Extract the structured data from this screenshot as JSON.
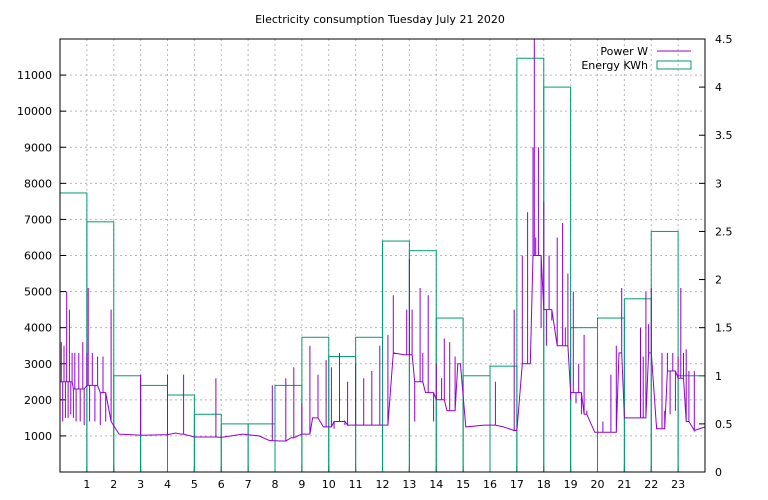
{
  "chart_data": {
    "type": "line",
    "title": "Electricity consumption Tuesday July 21 2020",
    "xlabel": "",
    "ylabel": "",
    "xlim": [
      0,
      24
    ],
    "ylim": [
      0,
      12000
    ],
    "y2lim": [
      0,
      4.5
    ],
    "grid": true,
    "legend_position": "top-right",
    "x_ticks": [
      "1",
      "2",
      "3",
      "4",
      "5",
      "6",
      "7",
      "8",
      "9",
      "10",
      "11",
      "12",
      "13",
      "14",
      "15",
      "16",
      "17",
      "18",
      "19",
      "20",
      "21",
      "22",
      "23"
    ],
    "y_ticks": [
      "1000",
      "2000",
      "3000",
      "4000",
      "5000",
      "6000",
      "7000",
      "8000",
      "9000",
      "10000",
      "11000"
    ],
    "y2_ticks": [
      "0",
      "0.5",
      "1",
      "1.5",
      "2",
      "2.5",
      "3",
      "3.5",
      "4",
      "4.5"
    ],
    "series": [
      {
        "name": "Power W",
        "kind": "line",
        "axis": "y",
        "color": "#9400d3",
        "base": [
          [
            0.0,
            2500
          ],
          [
            0.5,
            2300
          ],
          [
            1.0,
            2400
          ],
          [
            1.5,
            2200
          ],
          [
            1.9,
            1400
          ],
          [
            2.2,
            1050
          ],
          [
            3.0,
            1020
          ],
          [
            3.9,
            1030
          ],
          [
            4.3,
            1080
          ],
          [
            4.5,
            1050
          ],
          [
            5.0,
            970
          ],
          [
            6.0,
            960
          ],
          [
            6.8,
            1050
          ],
          [
            7.4,
            1000
          ],
          [
            7.8,
            870
          ],
          [
            8.2,
            860
          ],
          [
            8.6,
            950
          ],
          [
            9.0,
            1050
          ],
          [
            9.4,
            1500
          ],
          [
            9.8,
            1250
          ],
          [
            10.2,
            1400
          ],
          [
            10.7,
            1300
          ],
          [
            11.2,
            1300
          ],
          [
            12.0,
            1300
          ],
          [
            12.4,
            3300
          ],
          [
            12.8,
            3250
          ],
          [
            13.2,
            2500
          ],
          [
            13.6,
            2200
          ],
          [
            14.0,
            2000
          ],
          [
            14.4,
            1700
          ],
          [
            14.8,
            3000
          ],
          [
            15.1,
            1250
          ],
          [
            15.8,
            1300
          ],
          [
            16.5,
            1250
          ],
          [
            16.9,
            1150
          ],
          [
            17.2,
            3000
          ],
          [
            17.6,
            6000
          ],
          [
            18.0,
            4500
          ],
          [
            18.5,
            3500
          ],
          [
            19.0,
            2200
          ],
          [
            19.5,
            1600
          ],
          [
            19.9,
            1100
          ],
          [
            20.3,
            1100
          ],
          [
            20.8,
            3300
          ],
          [
            21.0,
            1500
          ],
          [
            21.6,
            1500
          ],
          [
            21.9,
            3300
          ],
          [
            22.2,
            1200
          ],
          [
            22.6,
            2800
          ],
          [
            23.0,
            2600
          ],
          [
            23.3,
            1400
          ],
          [
            23.6,
            1150
          ],
          [
            24.0,
            1250
          ]
        ],
        "spikes": [
          [
            0.05,
            3600
          ],
          [
            0.1,
            1400
          ],
          [
            0.15,
            3500
          ],
          [
            0.2,
            1500
          ],
          [
            0.25,
            5000
          ],
          [
            0.3,
            1500
          ],
          [
            0.35,
            4500
          ],
          [
            0.4,
            1600
          ],
          [
            0.45,
            3300
          ],
          [
            0.5,
            1500
          ],
          [
            0.55,
            3300
          ],
          [
            0.6,
            1400
          ],
          [
            0.7,
            3300
          ],
          [
            0.75,
            1400
          ],
          [
            0.85,
            3600
          ],
          [
            0.9,
            1300
          ],
          [
            1.0,
            3300
          ],
          [
            1.05,
            5100
          ],
          [
            1.1,
            1400
          ],
          [
            1.2,
            3300
          ],
          [
            1.3,
            1400
          ],
          [
            1.4,
            3200
          ],
          [
            1.5,
            1300
          ],
          [
            1.6,
            3200
          ],
          [
            1.7,
            1400
          ],
          [
            1.9,
            4500
          ],
          [
            3.0,
            2700
          ],
          [
            4.0,
            2700
          ],
          [
            4.6,
            2700
          ],
          [
            5.8,
            2600
          ],
          [
            7.9,
            2400
          ],
          [
            8.4,
            2600
          ],
          [
            8.7,
            2900
          ],
          [
            9.0,
            1900
          ],
          [
            9.3,
            3500
          ],
          [
            9.6,
            2700
          ],
          [
            9.9,
            3100
          ],
          [
            10.1,
            2900
          ],
          [
            10.2,
            1200
          ],
          [
            10.4,
            3300
          ],
          [
            10.6,
            1300
          ],
          [
            10.7,
            2500
          ],
          [
            10.8,
            1300
          ],
          [
            11.0,
            3000
          ],
          [
            11.3,
            2600
          ],
          [
            11.6,
            2800
          ],
          [
            11.9,
            3500
          ],
          [
            12.2,
            3800
          ],
          [
            12.4,
            4900
          ],
          [
            12.9,
            4500
          ],
          [
            13.0,
            5900
          ],
          [
            13.1,
            4500
          ],
          [
            13.2,
            1400
          ],
          [
            13.4,
            5100
          ],
          [
            13.5,
            3300
          ],
          [
            13.7,
            4900
          ],
          [
            13.9,
            1400
          ],
          [
            14.0,
            3000
          ],
          [
            14.2,
            2600
          ],
          [
            14.3,
            3700
          ],
          [
            14.5,
            3600
          ],
          [
            14.7,
            3200
          ],
          [
            14.9,
            3000
          ],
          [
            16.2,
            2500
          ],
          [
            16.9,
            4500
          ],
          [
            17.0,
            1200
          ],
          [
            17.2,
            6000
          ],
          [
            17.4,
            7200
          ],
          [
            17.5,
            3000
          ],
          [
            17.6,
            9000
          ],
          [
            17.65,
            12000
          ],
          [
            17.7,
            6500
          ],
          [
            17.8,
            9000
          ],
          [
            17.9,
            4000
          ],
          [
            18.0,
            7500
          ],
          [
            18.1,
            3500
          ],
          [
            18.2,
            6000
          ],
          [
            18.3,
            4200
          ],
          [
            18.5,
            6500
          ],
          [
            18.6,
            3500
          ],
          [
            18.7,
            6900
          ],
          [
            18.8,
            4000
          ],
          [
            18.9,
            5500
          ],
          [
            19.0,
            2000
          ],
          [
            19.1,
            5000
          ],
          [
            19.2,
            1900
          ],
          [
            19.3,
            3000
          ],
          [
            19.4,
            1600
          ],
          [
            19.5,
            3800
          ],
          [
            19.6,
            1700
          ],
          [
            20.2,
            1400
          ],
          [
            20.5,
            2700
          ],
          [
            20.7,
            3500
          ],
          [
            20.9,
            5100
          ],
          [
            21.6,
            4000
          ],
          [
            21.7,
            3200
          ],
          [
            21.8,
            5000
          ],
          [
            21.9,
            4100
          ],
          [
            22.0,
            5100
          ],
          [
            22.2,
            1300
          ],
          [
            22.4,
            3300
          ],
          [
            22.5,
            1700
          ],
          [
            22.6,
            3300
          ],
          [
            22.7,
            1600
          ],
          [
            22.8,
            3300
          ],
          [
            22.9,
            1700
          ],
          [
            23.0,
            3200
          ],
          [
            23.1,
            5100
          ],
          [
            23.2,
            3300
          ],
          [
            23.3,
            3400
          ],
          [
            23.4,
            2800
          ],
          [
            23.6,
            2800
          ]
        ]
      },
      {
        "name": "Energy KWh",
        "kind": "step-bars",
        "axis": "y2",
        "color": "#009e73",
        "x": [
          0,
          1,
          2,
          3,
          4,
          5,
          6,
          7,
          8,
          9,
          10,
          11,
          12,
          13,
          14,
          15,
          16,
          17,
          18,
          19,
          20,
          21,
          22,
          23
        ],
        "values": [
          2.9,
          2.6,
          1.0,
          0.9,
          0.8,
          0.6,
          0.5,
          0.5,
          0.9,
          1.4,
          1.2,
          1.4,
          2.4,
          2.3,
          1.6,
          1.0,
          1.1,
          4.3,
          4.0,
          1.5,
          1.6,
          1.8,
          2.5,
          1.0
        ]
      }
    ]
  }
}
